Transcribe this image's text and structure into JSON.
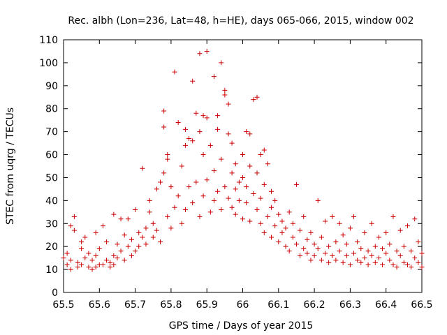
{
  "chart_data": {
    "type": "scatter",
    "title": "Rec. albh (Lon=236, Lat=48, h=HE), days 065-066, 2015, window 002",
    "xlabel": "GPS time / Days of year 2015",
    "ylabel": "STEC from uqrg / TECUs",
    "xlim": [
      65.5,
      66.5
    ],
    "ylim": [
      0,
      110
    ],
    "xticks": [
      "65.5",
      "65.6",
      "65.7",
      "65.8",
      "65.9",
      "66",
      "66.1",
      "66.2",
      "66.3",
      "66.4",
      "66.5"
    ],
    "yticks": [
      "0",
      "10",
      "20",
      "30",
      "40",
      "50",
      "60",
      "70",
      "80",
      "90",
      "100",
      "110"
    ],
    "marker": "+",
    "marker_color": "#cc0000",
    "grid": false,
    "legend": "none",
    "series": [
      {
        "name": "STEC",
        "points": [
          [
            65.5,
            15
          ],
          [
            65.51,
            12
          ],
          [
            65.51,
            17
          ],
          [
            65.52,
            10
          ],
          [
            65.52,
            14
          ],
          [
            65.52,
            29
          ],
          [
            65.53,
            33
          ],
          [
            65.53,
            27
          ],
          [
            65.54,
            13
          ],
          [
            65.54,
            11
          ],
          [
            65.55,
            19
          ],
          [
            65.55,
            22
          ],
          [
            65.55,
            12
          ],
          [
            65.56,
            15
          ],
          [
            65.56,
            24
          ],
          [
            65.57,
            17
          ],
          [
            65.57,
            11
          ],
          [
            65.58,
            10
          ],
          [
            65.58,
            14
          ],
          [
            65.59,
            26
          ],
          [
            65.59,
            16
          ],
          [
            65.59,
            11
          ],
          [
            65.6,
            19
          ],
          [
            65.6,
            12
          ],
          [
            65.61,
            12
          ],
          [
            65.61,
            29
          ],
          [
            65.62,
            22
          ],
          [
            65.62,
            14
          ],
          [
            65.63,
            11
          ],
          [
            65.63,
            13
          ],
          [
            65.64,
            34
          ],
          [
            65.64,
            16
          ],
          [
            65.64,
            12
          ],
          [
            65.65,
            21
          ],
          [
            65.65,
            15
          ],
          [
            65.66,
            32
          ],
          [
            65.66,
            18
          ],
          [
            65.67,
            25
          ],
          [
            65.67,
            14
          ],
          [
            65.68,
            20
          ],
          [
            65.68,
            32
          ],
          [
            65.69,
            16
          ],
          [
            65.69,
            23
          ],
          [
            65.7,
            18
          ],
          [
            65.7,
            36
          ],
          [
            65.71,
            20
          ],
          [
            65.71,
            26
          ],
          [
            65.72,
            54
          ],
          [
            65.72,
            24
          ],
          [
            65.73,
            28
          ],
          [
            65.73,
            21
          ],
          [
            65.74,
            35
          ],
          [
            65.74,
            40
          ],
          [
            65.75,
            30
          ],
          [
            65.75,
            24
          ],
          [
            65.76,
            45
          ],
          [
            65.76,
            27
          ],
          [
            65.77,
            48
          ],
          [
            65.77,
            22
          ],
          [
            65.78,
            52
          ],
          [
            65.78,
            79
          ],
          [
            65.78,
            72
          ],
          [
            65.79,
            60
          ],
          [
            65.79,
            58
          ],
          [
            65.79,
            33
          ],
          [
            65.8,
            28
          ],
          [
            65.8,
            46
          ],
          [
            65.81,
            96
          ],
          [
            65.81,
            37
          ],
          [
            65.82,
            74
          ],
          [
            65.82,
            42
          ],
          [
            65.83,
            55
          ],
          [
            65.83,
            30
          ],
          [
            65.84,
            71
          ],
          [
            65.84,
            64
          ],
          [
            65.84,
            36
          ],
          [
            65.85,
            67
          ],
          [
            65.85,
            46
          ],
          [
            65.86,
            66
          ],
          [
            65.86,
            39
          ],
          [
            65.86,
            92
          ],
          [
            65.87,
            78
          ],
          [
            65.87,
            48
          ],
          [
            65.88,
            70
          ],
          [
            65.88,
            33
          ],
          [
            65.88,
            104
          ],
          [
            65.89,
            77
          ],
          [
            65.89,
            60
          ],
          [
            65.89,
            42
          ],
          [
            65.9,
            105
          ],
          [
            65.9,
            49
          ],
          [
            65.9,
            76
          ],
          [
            65.91,
            64
          ],
          [
            65.91,
            35
          ],
          [
            65.92,
            94
          ],
          [
            65.92,
            53
          ],
          [
            65.92,
            40
          ],
          [
            65.93,
            71
          ],
          [
            65.93,
            44
          ],
          [
            65.93,
            77
          ],
          [
            65.94,
            58
          ],
          [
            65.94,
            36
          ],
          [
            65.94,
            100
          ],
          [
            65.95,
            86
          ],
          [
            65.95,
            46
          ],
          [
            65.95,
            88
          ],
          [
            65.96,
            69
          ],
          [
            65.96,
            41
          ],
          [
            65.96,
            82
          ],
          [
            65.97,
            65
          ],
          [
            65.97,
            52
          ],
          [
            65.97,
            37
          ],
          [
            65.98,
            56
          ],
          [
            65.98,
            45
          ],
          [
            65.98,
            34
          ],
          [
            65.99,
            48
          ],
          [
            65.99,
            40
          ],
          [
            66.0,
            60
          ],
          [
            66.0,
            50
          ],
          [
            66.0,
            32
          ],
          [
            66.01,
            70
          ],
          [
            66.01,
            46
          ],
          [
            66.01,
            39
          ],
          [
            66.02,
            69
          ],
          [
            66.02,
            55
          ],
          [
            66.02,
            31
          ],
          [
            66.03,
            84
          ],
          [
            66.03,
            43
          ],
          [
            66.04,
            85
          ],
          [
            66.04,
            52
          ],
          [
            66.04,
            36
          ],
          [
            66.05,
            60
          ],
          [
            66.05,
            30
          ],
          [
            66.05,
            41
          ],
          [
            66.06,
            62
          ],
          [
            66.06,
            26
          ],
          [
            66.06,
            47
          ],
          [
            66.07,
            56
          ],
          [
            66.07,
            33
          ],
          [
            66.08,
            44
          ],
          [
            66.08,
            24
          ],
          [
            66.08,
            37
          ],
          [
            66.09,
            29
          ],
          [
            66.09,
            40
          ],
          [
            66.1,
            22
          ],
          [
            66.1,
            34
          ],
          [
            66.11,
            26
          ],
          [
            66.11,
            31
          ],
          [
            66.12,
            20
          ],
          [
            66.12,
            28
          ],
          [
            66.13,
            35
          ],
          [
            66.13,
            18
          ],
          [
            66.14,
            30
          ],
          [
            66.14,
            24
          ],
          [
            66.15,
            47
          ],
          [
            66.15,
            21
          ],
          [
            66.16,
            16
          ],
          [
            66.16,
            27
          ],
          [
            66.17,
            33
          ],
          [
            66.17,
            19
          ],
          [
            66.18,
            23
          ],
          [
            66.18,
            17
          ],
          [
            66.19,
            14
          ],
          [
            66.19,
            26
          ],
          [
            66.2,
            21
          ],
          [
            66.2,
            16
          ],
          [
            66.21,
            40
          ],
          [
            66.21,
            19
          ],
          [
            66.22,
            14
          ],
          [
            66.22,
            24
          ],
          [
            66.23,
            17
          ],
          [
            66.23,
            31
          ],
          [
            66.24,
            13
          ],
          [
            66.24,
            20
          ],
          [
            66.25,
            16
          ],
          [
            66.25,
            33
          ],
          [
            66.26,
            22
          ],
          [
            66.26,
            14
          ],
          [
            66.27,
            18
          ],
          [
            66.27,
            30
          ],
          [
            66.28,
            13
          ],
          [
            66.28,
            25
          ],
          [
            66.29,
            16
          ],
          [
            66.29,
            21
          ],
          [
            66.3,
            12
          ],
          [
            66.3,
            28
          ],
          [
            66.31,
            17
          ],
          [
            66.31,
            33
          ],
          [
            66.32,
            14
          ],
          [
            66.32,
            22
          ],
          [
            66.33,
            13
          ],
          [
            66.33,
            19
          ],
          [
            66.34,
            15
          ],
          [
            66.34,
            26
          ],
          [
            66.35,
            12
          ],
          [
            66.35,
            18
          ],
          [
            66.36,
            30
          ],
          [
            66.36,
            16
          ],
          [
            66.37,
            13
          ],
          [
            66.37,
            20
          ],
          [
            66.38,
            15
          ],
          [
            66.38,
            24
          ],
          [
            66.39,
            12
          ],
          [
            66.39,
            19
          ],
          [
            66.4,
            17
          ],
          [
            66.4,
            26
          ],
          [
            66.41,
            14
          ],
          [
            66.41,
            21
          ],
          [
            66.42,
            12
          ],
          [
            66.42,
            33
          ],
          [
            66.43,
            18
          ],
          [
            66.43,
            11
          ],
          [
            66.44,
            16
          ],
          [
            66.44,
            27
          ],
          [
            66.45,
            13
          ],
          [
            66.45,
            20
          ],
          [
            66.46,
            12
          ],
          [
            66.46,
            29
          ],
          [
            66.47,
            18
          ],
          [
            66.47,
            11
          ],
          [
            66.48,
            15
          ],
          [
            66.48,
            32
          ],
          [
            66.49,
            13
          ],
          [
            66.49,
            22
          ],
          [
            66.5,
            11
          ],
          [
            66.5,
            17
          ]
        ]
      }
    ]
  }
}
